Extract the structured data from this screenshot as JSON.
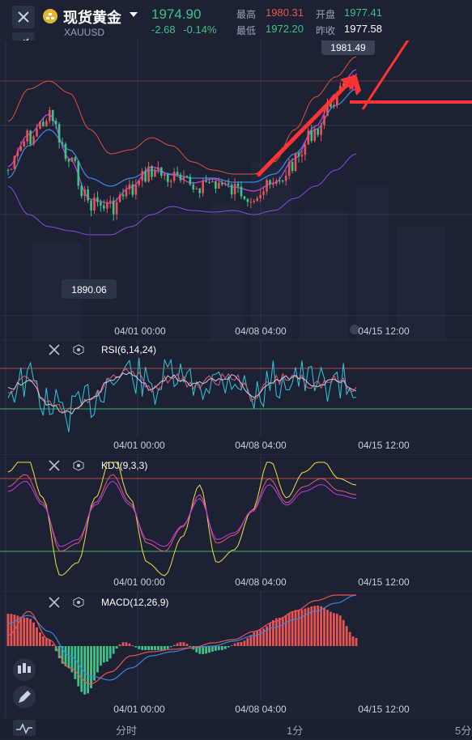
{
  "header": {
    "title": "现货黄金",
    "symbol": "XAUUSD",
    "price": "1974.90",
    "change": "-2.68",
    "change_pct": "-0.14%",
    "high_label": "最高",
    "high": "1980.31",
    "open_label": "开盘",
    "open": "1977.41",
    "low_label": "最低",
    "low": "1972.20",
    "prev_label": "昨收",
    "prev": "1977.58"
  },
  "main_chart": {
    "max_label": "1981.49",
    "min_label": "1890.06",
    "time_labels": [
      "04/01 00:00",
      "04/08 04:00",
      "04/15 12:00"
    ]
  },
  "indicators": [
    {
      "name": "RSI(6,14,24)",
      "time_labels": [
        "04/01 00:00",
        "04/08 04:00",
        "04/15 12:00"
      ]
    },
    {
      "name": "KDJ(9,3,3)",
      "time_labels": [
        "04/01 00:00",
        "04/08 04:00",
        "04/15 12:00"
      ]
    },
    {
      "name": "MACD(12,26,9)",
      "time_labels": [
        "04/01 00:00",
        "04/08 04:00",
        "04/15 12:00"
      ]
    }
  ],
  "bottom_bar": {
    "tabs": [
      "分时",
      "1分",
      "5分"
    ]
  },
  "colors": {
    "up": "#e85454",
    "down": "#3fc28a",
    "bg": "#1c2233",
    "accent_blue": "#3b86e0",
    "arrow": "#ff3333"
  },
  "icons": [
    "close-icon",
    "gold-coin-icon",
    "chevron-down-icon",
    "collapse-icon",
    "settings-hex-icon",
    "candlestick-icon",
    "pencil-icon",
    "indicator-icon"
  ]
}
